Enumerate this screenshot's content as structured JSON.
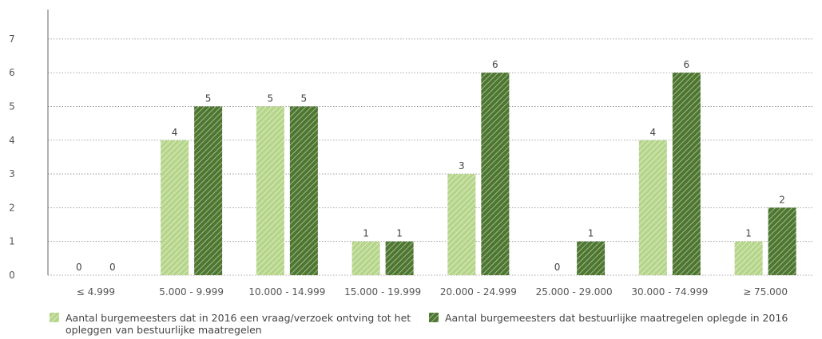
{
  "chart_data": {
    "type": "bar",
    "categories": [
      "≤ 4.999",
      "5.000 - 9.999",
      "10.000 - 14.999",
      "15.000 - 19.999",
      "20.000 - 24.999",
      "25.000 - 29.000",
      "30.000 - 74.999",
      "≥ 75.000"
    ],
    "series": [
      {
        "name": "Aantal burgemeesters dat in 2016 een vraag/verzoek ontving tot het opleggen van bestuurlijke maatregelen",
        "values": [
          0,
          4,
          5,
          1,
          3,
          0,
          4,
          1
        ],
        "color": "#b5d58a",
        "stripe": "#e6f1d2"
      },
      {
        "name": "Aantal burgemeesters dat bestuurlijke maatregelen oplegde in 2016",
        "values": [
          0,
          5,
          5,
          1,
          6,
          1,
          6,
          2
        ],
        "color": "#4d7630",
        "stripe": "#b7c9a6"
      }
    ],
    "yticks": [
      0,
      1,
      2,
      3,
      4,
      5,
      6,
      7
    ],
    "ylim": [
      0,
      7.8
    ],
    "grid": true,
    "grid_style": "dotted",
    "data_labels": true,
    "legend_position": "bottom"
  }
}
